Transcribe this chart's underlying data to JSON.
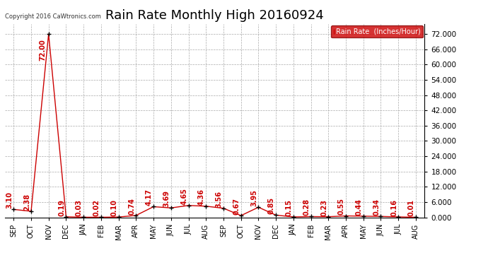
{
  "title": "Rain Rate Monthly High 20160924",
  "copyright": "Copyright 2016 CaWtronics.com",
  "legend_label": "Rain Rate  (Inches/Hour)",
  "x_labels": [
    "SEP",
    "OCT",
    "NOV",
    "DEC",
    "JAN",
    "FEB",
    "MAR",
    "APR",
    "MAY",
    "JUN",
    "JUL",
    "AUG",
    "SEP",
    "OCT",
    "NOV",
    "DEC",
    "JAN",
    "FEB",
    "MAR",
    "APR",
    "MAY",
    "JUN",
    "JUL",
    "AUG"
  ],
  "values": [
    3.1,
    2.38,
    72.0,
    0.19,
    0.03,
    0.02,
    0.1,
    0.74,
    4.17,
    3.69,
    4.65,
    4.36,
    3.56,
    0.67,
    3.95,
    0.85,
    0.15,
    0.28,
    0.23,
    0.55,
    0.44,
    0.34,
    0.16,
    0.01
  ],
  "ylim": [
    0,
    76
  ],
  "yticks": [
    0.0,
    6.0,
    12.0,
    18.0,
    24.0,
    30.0,
    36.0,
    42.0,
    48.0,
    54.0,
    60.0,
    66.0,
    72.0
  ],
  "line_color": "#cc0000",
  "marker_color": "#000000",
  "grid_color": "#aaaaaa",
  "bg_color": "#ffffff",
  "title_fontsize": 13,
  "annotation_fontsize": 7,
  "legend_bg": "#cc0000",
  "legend_text_color": "#ffffff"
}
